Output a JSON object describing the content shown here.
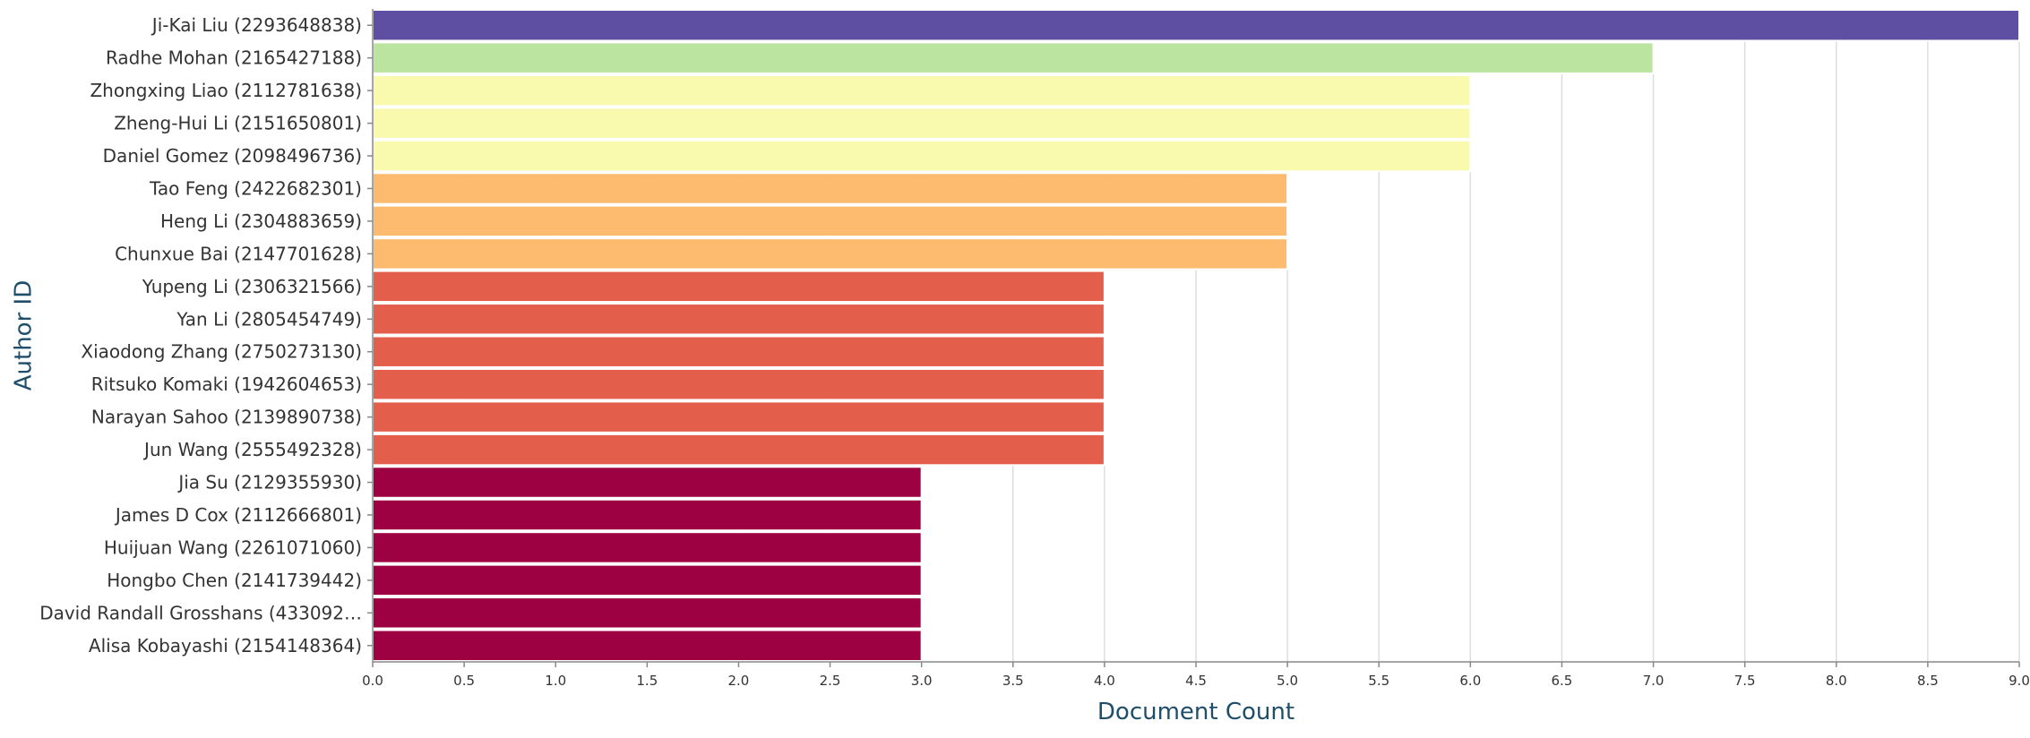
{
  "chart_data": {
    "type": "bar",
    "orientation": "horizontal",
    "xlabel": "Document Count",
    "ylabel": "Author ID",
    "xlim": [
      0,
      9
    ],
    "x_ticks": [
      "0.0",
      "0.5",
      "1.0",
      "1.5",
      "2.0",
      "2.5",
      "3.0",
      "3.5",
      "4.0",
      "4.5",
      "5.0",
      "5.5",
      "6.0",
      "6.5",
      "7.0",
      "7.5",
      "8.0",
      "8.5",
      "9.0"
    ],
    "grid": true,
    "categories": [
      "Ji-Kai Liu (2293648838)",
      "Radhe Mohan (2165427188)",
      "Zhongxing Liao (2112781638)",
      "Zheng-Hui Li (2151650801)",
      "Daniel Gomez (2098496736)",
      "Tao Feng (2422682301)",
      "Heng Li (2304883659)",
      "Chunxue Bai (2147701628)",
      "Yupeng Li (2306321566)",
      "Yan Li (2805454749)",
      "Xiaodong Zhang (2750273130)",
      "Ritsuko Komaki (1942604653)",
      "Narayan Sahoo (2139890738)",
      "Jun Wang (2555492328)",
      "Jia Su (2129355930)",
      "James D Cox (2112666801)",
      "Huijuan Wang (2261071060)",
      "Hongbo Chen (2141739442)",
      "David Randall Grosshans (433092…",
      "Alisa Kobayashi (2154148364)"
    ],
    "values": [
      9,
      7,
      6,
      6,
      6,
      5,
      5,
      5,
      4,
      4,
      4,
      4,
      4,
      4,
      3,
      3,
      3,
      3,
      3,
      3
    ],
    "colors": {
      "9": "#5e4fa2",
      "7": "#bae4a0",
      "6": "#fafaae",
      "5": "#fdbb6f",
      "4": "#e45f4b",
      "3": "#9e0142"
    }
  }
}
